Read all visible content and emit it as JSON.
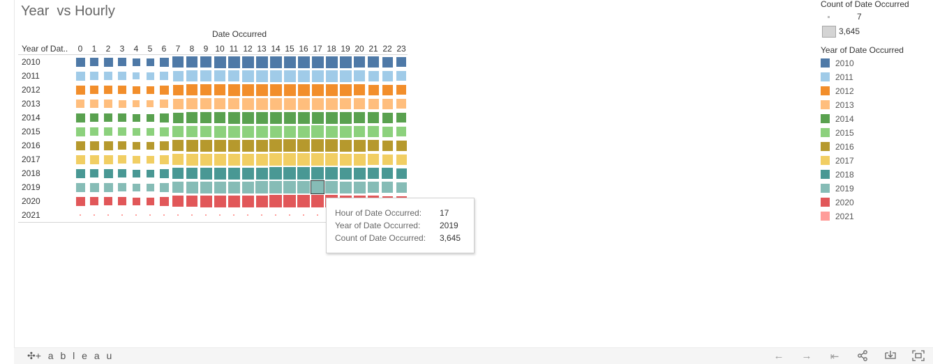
{
  "title": "Year  vs Hourly",
  "chart_data": {
    "type": "heatmap",
    "column_axis_title": "Date Occurred",
    "row_header": "Year of Dat..",
    "columns": [
      "0",
      "1",
      "2",
      "3",
      "4",
      "5",
      "6",
      "7",
      "8",
      "9",
      "10",
      "11",
      "12",
      "13",
      "14",
      "15",
      "16",
      "17",
      "18",
      "19",
      "20",
      "21",
      "22",
      "23"
    ],
    "rows": [
      {
        "year": "2010",
        "color": "#4e79a7",
        "values": [
          1750,
          1550,
          1600,
          1400,
          1100,
          1150,
          1650,
          2600,
          2900,
          2950,
          3000,
          3050,
          3150,
          3250,
          3300,
          3350,
          3350,
          3400,
          3300,
          3100,
          2900,
          2600,
          2400,
          2100
        ]
      },
      {
        "year": "2011",
        "color": "#a0cbe8",
        "values": [
          1600,
          1450,
          1500,
          1300,
          1000,
          1050,
          1550,
          2500,
          2800,
          2850,
          2900,
          2950,
          3050,
          3150,
          3200,
          3250,
          3250,
          3300,
          3200,
          3000,
          2800,
          2500,
          2300,
          2000
        ]
      },
      {
        "year": "2012",
        "color": "#f28e2b",
        "values": [
          1650,
          1500,
          1500,
          1300,
          1050,
          1100,
          1600,
          2550,
          2850,
          2900,
          2950,
          3000,
          3100,
          3200,
          3250,
          3300,
          3300,
          3350,
          3250,
          3050,
          2850,
          2550,
          2350,
          2050
        ]
      },
      {
        "year": "2013",
        "color": "#ffbe7d",
        "values": [
          1500,
          1350,
          1400,
          1200,
          950,
          1000,
          1450,
          2450,
          2750,
          2800,
          2850,
          2900,
          3000,
          3100,
          3150,
          3200,
          3200,
          3250,
          3150,
          2950,
          2750,
          2450,
          2250,
          1950
        ]
      },
      {
        "year": "2014",
        "color": "#59a14f",
        "values": [
          1700,
          1500,
          1550,
          1350,
          1050,
          1100,
          1600,
          2550,
          2850,
          2900,
          2950,
          3000,
          3100,
          3250,
          3300,
          3350,
          3350,
          3400,
          3300,
          3100,
          2900,
          2600,
          2400,
          2100
        ]
      },
      {
        "year": "2015",
        "color": "#8cd17d",
        "values": [
          1700,
          1500,
          1550,
          1350,
          1050,
          1100,
          1650,
          2600,
          2900,
          2950,
          3000,
          3050,
          3150,
          3250,
          3350,
          3400,
          3400,
          3450,
          3350,
          3150,
          2950,
          2650,
          2450,
          2150
        ]
      },
      {
        "year": "2016",
        "color": "#b6992d",
        "values": [
          1800,
          1600,
          1650,
          1450,
          1150,
          1200,
          1750,
          2700,
          3000,
          3050,
          3100,
          3150,
          3250,
          3350,
          3450,
          3500,
          3500,
          3550,
          3450,
          3250,
          3050,
          2750,
          2550,
          2250
        ]
      },
      {
        "year": "2017",
        "color": "#f1ce63",
        "values": [
          1800,
          1600,
          1650,
          1450,
          1150,
          1200,
          1750,
          2700,
          3000,
          3050,
          3100,
          3150,
          3250,
          3350,
          3450,
          3500,
          3500,
          3550,
          3450,
          3250,
          3050,
          2750,
          2550,
          2250
        ]
      },
      {
        "year": "2018",
        "color": "#499894",
        "values": [
          1750,
          1550,
          1600,
          1400,
          1100,
          1150,
          1700,
          2650,
          2950,
          3050,
          3100,
          3200,
          3300,
          3400,
          3500,
          3550,
          3550,
          3600,
          3500,
          3300,
          3100,
          2800,
          2600,
          2300
        ]
      },
      {
        "year": "2019",
        "color": "#86bcb6",
        "values": [
          1800,
          1600,
          1650,
          1450,
          1150,
          1200,
          1750,
          2700,
          3000,
          3100,
          3150,
          3250,
          3350,
          3450,
          3550,
          3600,
          3600,
          3645,
          3550,
          3350,
          3150,
          2850,
          2650,
          2350
        ]
      },
      {
        "year": "2020",
        "color": "#e15759",
        "values": [
          1650,
          1450,
          1500,
          1300,
          1050,
          1100,
          1600,
          2600,
          2900,
          3000,
          3050,
          3150,
          3250,
          3350,
          3450,
          3500,
          3500,
          3550,
          3450,
          3250,
          3050,
          2750,
          2550,
          2250
        ]
      },
      {
        "year": "2021",
        "color": "#ff9d9a",
        "values": [
          8,
          7,
          7,
          7,
          7,
          7,
          7,
          8,
          9,
          9,
          9,
          9,
          10,
          10,
          10,
          10,
          10,
          10,
          10,
          9,
          9,
          9,
          8,
          8
        ]
      }
    ],
    "size_range": [
      7,
      3645
    ],
    "highlight": {
      "hour": "17",
      "year": "2019",
      "value": 3645
    }
  },
  "tooltip": {
    "hour_label": "Hour of Date Occurred:",
    "hour_value": "17",
    "year_label": "Year of Date Occurred:",
    "year_value": "2019",
    "count_label": "Count of Date Occurred:",
    "count_value": "3,645"
  },
  "legend": {
    "size_title": "Count of Date Occurred",
    "size_min": "7",
    "size_max": "3,645",
    "color_title": "Year of Date Occurred",
    "items": [
      {
        "label": "2010",
        "color": "#4e79a7"
      },
      {
        "label": "2011",
        "color": "#a0cbe8"
      },
      {
        "label": "2012",
        "color": "#f28e2b"
      },
      {
        "label": "2013",
        "color": "#ffbe7d"
      },
      {
        "label": "2014",
        "color": "#59a14f"
      },
      {
        "label": "2015",
        "color": "#8cd17d"
      },
      {
        "label": "2016",
        "color": "#b6992d"
      },
      {
        "label": "2017",
        "color": "#f1ce63"
      },
      {
        "label": "2018",
        "color": "#499894"
      },
      {
        "label": "2019",
        "color": "#86bcb6"
      },
      {
        "label": "2020",
        "color": "#e15759"
      },
      {
        "label": "2021",
        "color": "#ff9d9a"
      }
    ]
  },
  "footer": {
    "logo_text": "+ a b l e a u",
    "icons": [
      "undo-icon",
      "redo-icon",
      "revert-icon",
      "share-icon",
      "download-icon",
      "fullscreen-icon"
    ]
  }
}
